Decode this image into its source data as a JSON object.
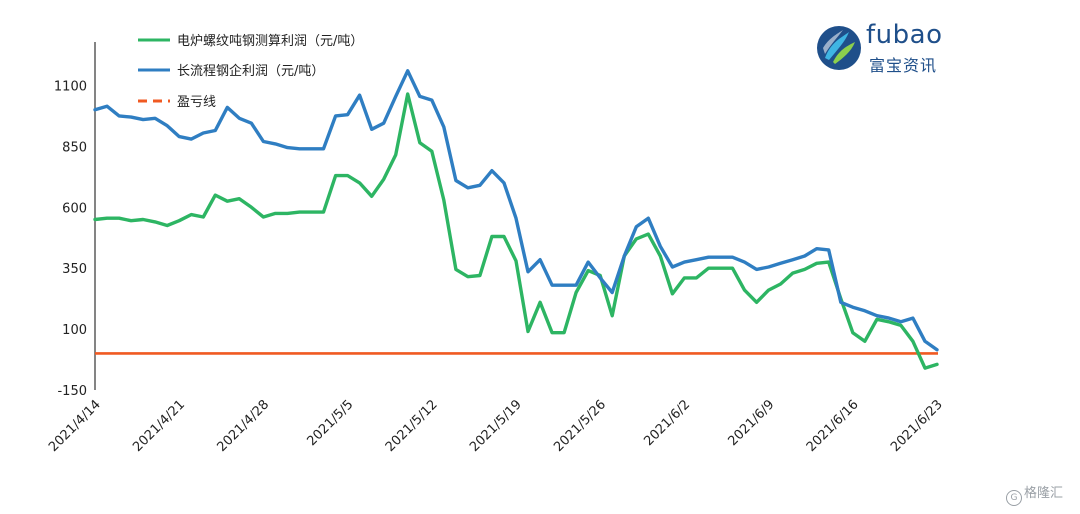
{
  "chart_data": {
    "type": "line",
    "title": "",
    "xlabel": "",
    "ylabel": "",
    "ylim": [
      -150,
      1225
    ],
    "yticks": [
      -150,
      100,
      350,
      600,
      850,
      1100
    ],
    "x_tick_labels": [
      "2021/4/14",
      "2021/4/21",
      "2021/4/28",
      "2021/5/5",
      "2021/5/12",
      "2021/5/19",
      "2021/5/26",
      "2021/6/2",
      "2021/6/9",
      "2021/6/16",
      "2021/6/23"
    ],
    "legend_position": "top-left",
    "series": [
      {
        "name": "电炉螺纹吨钢测算利润（元/吨）",
        "color": "#2db563",
        "values": [
          550,
          555,
          555,
          545,
          550,
          540,
          525,
          545,
          570,
          560,
          650,
          625,
          635,
          600,
          560,
          575,
          575,
          580,
          580,
          580,
          730,
          730,
          700,
          645,
          715,
          815,
          1065,
          865,
          830,
          630,
          345,
          315,
          320,
          480,
          480,
          380,
          90,
          210,
          85,
          85,
          250,
          340,
          320,
          155,
          400,
          470,
          490,
          400,
          245,
          310,
          310,
          350,
          350,
          350,
          260,
          210,
          260,
          285,
          330,
          345,
          370,
          375,
          225,
          85,
          50,
          140,
          130,
          115,
          50,
          -60,
          -45
        ]
      },
      {
        "name": "长流程钢企利润（元/吨）",
        "color": "#2f7ec2",
        "values": [
          1000,
          1015,
          975,
          970,
          960,
          965,
          935,
          890,
          880,
          905,
          915,
          1010,
          965,
          945,
          870,
          860,
          845,
          840,
          840,
          840,
          975,
          980,
          1060,
          920,
          945,
          1055,
          1160,
          1055,
          1040,
          930,
          710,
          680,
          690,
          750,
          700,
          555,
          335,
          385,
          280,
          280,
          280,
          375,
          310,
          250,
          400,
          520,
          555,
          440,
          355,
          375,
          385,
          395,
          395,
          395,
          375,
          345,
          355,
          370,
          385,
          400,
          430,
          425,
          210,
          190,
          175,
          155,
          145,
          130,
          145,
          50,
          15
        ]
      },
      {
        "name": "盈亏线",
        "color": "#f05a22",
        "values": [
          0
        ]
      }
    ]
  },
  "logo": {
    "name": "fubao",
    "subtitle": "富宝资讯"
  },
  "watermark": {
    "icon": "G",
    "text": "格隆汇"
  }
}
